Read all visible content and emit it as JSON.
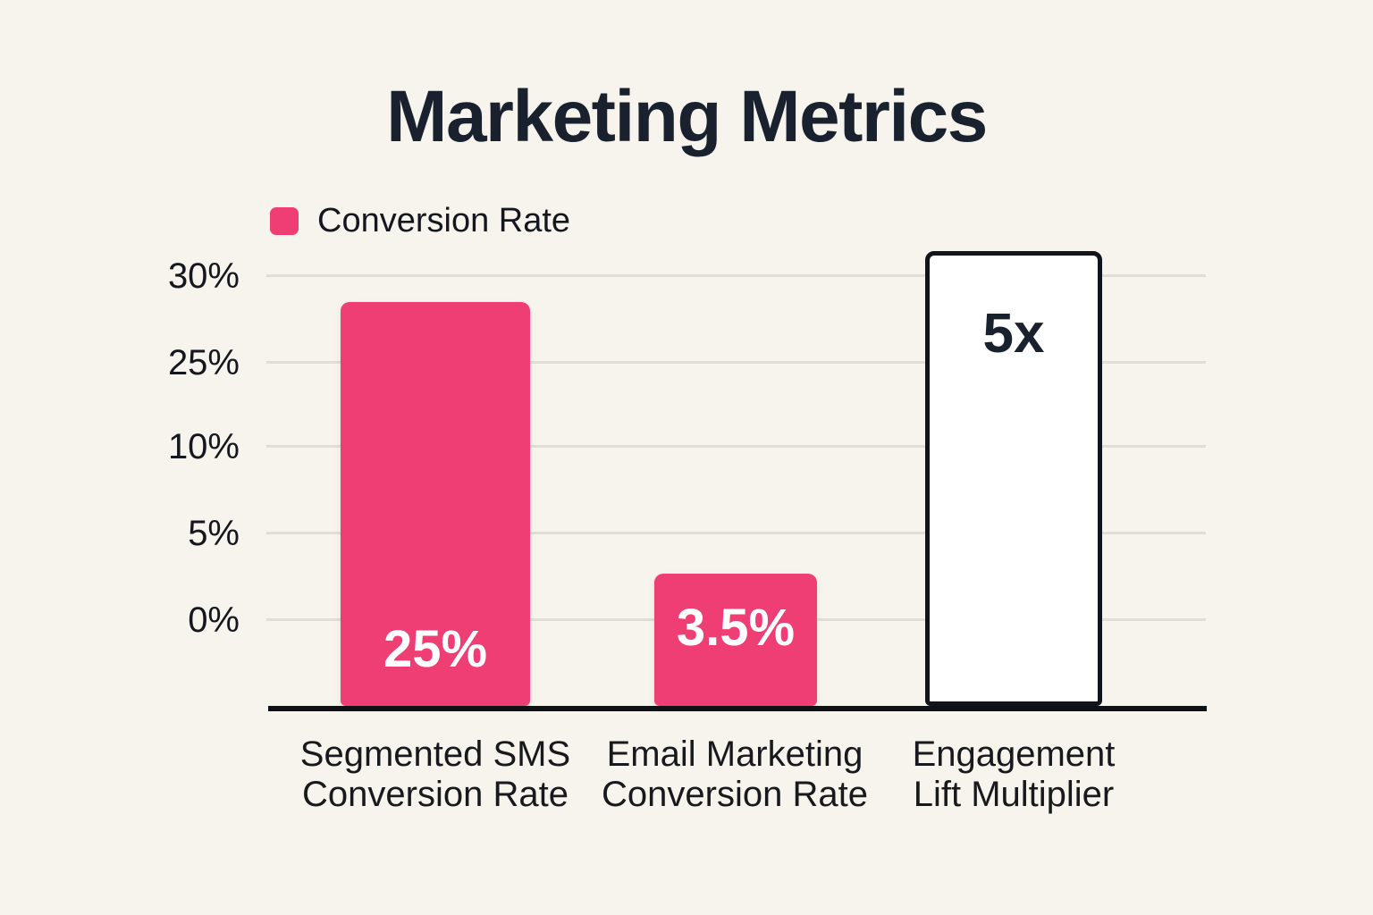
{
  "title": "Marketing Metrics",
  "legend": {
    "label": "Conversion Rate",
    "color": "#EF3E74"
  },
  "y_axis": {
    "ticks": [
      "30%",
      "25%",
      "10%",
      "5%",
      "0%"
    ]
  },
  "bars": [
    {
      "label_line1": "Segmented SMS",
      "label_line2": "Conversion Rate",
      "value_label": "25%",
      "style": "filled"
    },
    {
      "label_line1": "Email Marketing",
      "label_line2": "Conversion Rate",
      "value_label": "3.5%",
      "style": "filled"
    },
    {
      "label_line1": "Engagement",
      "label_line2": "Lift Multiplier",
      "value_label": "5x",
      "style": "outlined"
    }
  ],
  "colors": {
    "background": "#F7F4EE",
    "bar_fill": "#EF3E74",
    "outlined_bar_fill": "#FFFFFF",
    "outlined_bar_border": "#10151C",
    "title_text": "#1A212E",
    "grid_line": "#E1DED7",
    "axis_line": "#0E1116",
    "value_label_light": "#FFFFFF",
    "value_label_dark": "#1A212E"
  },
  "chart_data": {
    "type": "bar",
    "title": "Marketing Metrics",
    "categories": [
      "Segmented SMS Conversion Rate",
      "Email Marketing Conversion Rate",
      "Engagement Lift Multiplier"
    ],
    "series": [
      {
        "name": "Conversion Rate",
        "values": [
          25,
          3.5,
          5
        ],
        "value_labels": [
          "25%",
          "3.5%",
          "5x"
        ],
        "units": [
          "percent",
          "percent",
          "multiplier"
        ]
      }
    ],
    "y_tick_labels": [
      "30%",
      "25%",
      "10%",
      "5%",
      "0%"
    ],
    "y_axis_note": "Tick labels evenly spaced (non-linear stylized scale); bar heights are illustrative, not proportional",
    "grid": true,
    "legend_position": "top-left",
    "bar_styles": [
      "filled",
      "filled",
      "outlined"
    ],
    "xlabel": "",
    "ylabel": ""
  }
}
